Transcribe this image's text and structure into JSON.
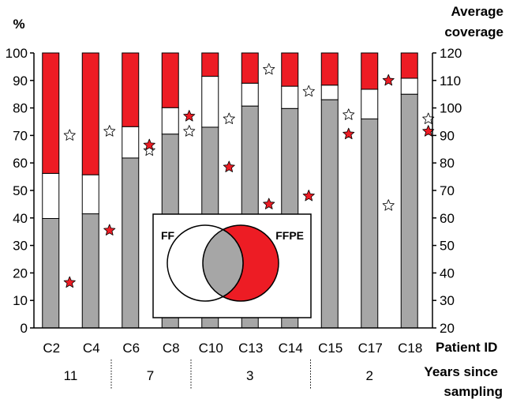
{
  "chart_data": {
    "type": "bar",
    "y_left_label": "%",
    "y_right_label": [
      "Average",
      "coverage"
    ],
    "y_left_range": [
      0,
      100
    ],
    "y_left_ticks": [
      0,
      10,
      20,
      30,
      40,
      50,
      60,
      70,
      80,
      90,
      100
    ],
    "y_right_range": [
      20,
      120
    ],
    "y_right_ticks": [
      20,
      30,
      40,
      50,
      60,
      70,
      80,
      90,
      100,
      110,
      120
    ],
    "categories": [
      "C2",
      "C4",
      "C6",
      "C8",
      "C10",
      "C13",
      "C14",
      "C15",
      "C17",
      "C18"
    ],
    "x_label": "Patient ID",
    "series": [
      {
        "name": "Shared (FF ∩ FFPE)",
        "color": "#a6a6a6",
        "values": [
          39.8,
          41.5,
          61.8,
          70.5,
          73.0,
          80.7,
          79.8,
          83.0,
          76.0,
          85.0
        ]
      },
      {
        "name": "FF only",
        "color": "#ffffff",
        "values": [
          16.4,
          14.2,
          11.4,
          9.6,
          18.5,
          8.3,
          8.1,
          5.3,
          10.8,
          5.8
        ]
      },
      {
        "name": "FFPE only",
        "color": "#ed1c24",
        "values": [
          43.8,
          44.3,
          26.8,
          19.9,
          8.5,
          11.0,
          12.1,
          11.7,
          13.2,
          9.2
        ]
      }
    ],
    "coverage_stars": {
      "FF": [
        90,
        91.5,
        84.5,
        91.5,
        96,
        114,
        106,
        97.5,
        64.5,
        96
      ],
      "FFPE": [
        36.5,
        55.5,
        86.5,
        97,
        78.5,
        65,
        68,
        90.5,
        110,
        91.5
      ]
    },
    "star_colors": {
      "FF": "#ffffff",
      "FFPE": "#ed1c24"
    },
    "groups": [
      {
        "years": "11",
        "categories": [
          "C2",
          "C4"
        ]
      },
      {
        "years": "7",
        "categories": [
          "C6",
          "C8"
        ]
      },
      {
        "years": "3",
        "categories": [
          "C10",
          "C13",
          "C14"
        ]
      },
      {
        "years": "2",
        "categories": [
          "C15",
          "C17",
          "C18"
        ]
      }
    ],
    "group_axis_label": [
      "Years since",
      "sampling"
    ],
    "legend": {
      "type": "venn",
      "left_label": "FF",
      "right_label": "FFPE",
      "colors": {
        "left": "#ffffff",
        "overlap": "#a6a6a6",
        "right": "#ed1c24"
      }
    }
  }
}
